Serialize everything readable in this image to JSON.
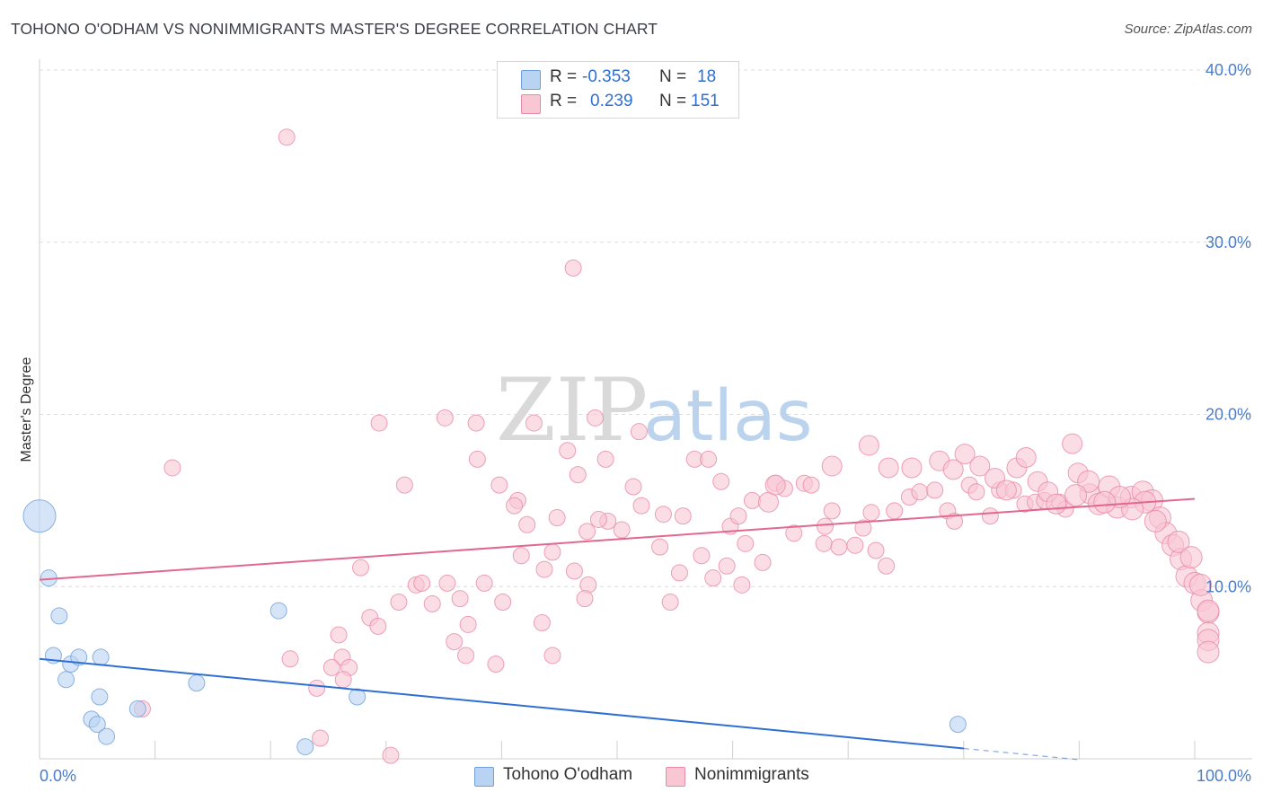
{
  "title": "TOHONO O'ODHAM VS NONIMMIGRANTS MASTER'S DEGREE CORRELATION CHART",
  "source": "Source: ZipAtlas.com",
  "watermark": {
    "zip": "ZIP",
    "atlas": "atlas"
  },
  "legend": {
    "rows": [
      {
        "r_label": "R =",
        "r_value": "-0.353",
        "n_label": "N =",
        "n_value": "18",
        "color": "#b9d3f2",
        "border": "#6fa0db"
      },
      {
        "r_label": "R =",
        "r_value": "0.239",
        "n_label": "N =",
        "n_value": "151",
        "color": "#f9c6d4",
        "border": "#e88aa6"
      }
    ]
  },
  "bottom_legend": [
    {
      "label": "Tohono O'odham",
      "color": "#b9d3f2",
      "border": "#6fa0db"
    },
    {
      "label": "Nonimmigrants",
      "color": "#f9c6d4",
      "border": "#e88aa6"
    }
  ],
  "chart_data": {
    "type": "scatter",
    "title": "TOHONO O'ODHAM VS NONIMMIGRANTS MASTER'S DEGREE CORRELATION CHART",
    "xlabel": "",
    "ylabel": "Master's Degree",
    "xlim": [
      0,
      100
    ],
    "ylim": [
      0,
      40
    ],
    "x_tick_labels": [
      "0.0%",
      "100.0%"
    ],
    "y_ticks": [
      10,
      20,
      30,
      40
    ],
    "y_tick_labels": [
      "10.0%",
      "20.0%",
      "30.0%",
      "40.0%"
    ],
    "series": [
      {
        "name": "Tohono O'odham",
        "color": "#6fa0db",
        "fill": "#b9d3f2",
        "trend": {
          "x0": 0,
          "y0": 5.8,
          "x1": 80,
          "y1": 0.6,
          "dash_to_x": 90
        },
        "points": [
          [
            0,
            14.1,
            18
          ],
          [
            0.8,
            10.5,
            9
          ],
          [
            1.7,
            8.3,
            9
          ],
          [
            1.2,
            6.0,
            9
          ],
          [
            2.7,
            5.5,
            9
          ],
          [
            3.4,
            5.9,
            9
          ],
          [
            2.3,
            4.6,
            9
          ],
          [
            5.3,
            5.9,
            9
          ],
          [
            5.2,
            3.6,
            9
          ],
          [
            4.5,
            2.3,
            9
          ],
          [
            5.0,
            2.0,
            9
          ],
          [
            5.8,
            1.3,
            9
          ],
          [
            8.5,
            2.9,
            9
          ],
          [
            13.6,
            4.4,
            9
          ],
          [
            20.7,
            8.6,
            9
          ],
          [
            27.5,
            3.6,
            9
          ],
          [
            23.0,
            0.7,
            9
          ],
          [
            79.5,
            2.0,
            9
          ]
        ]
      },
      {
        "name": "Nonimmigrants",
        "color": "#e88aa6",
        "fill": "#f9c6d4",
        "trend": {
          "x0": 0,
          "y0": 10.4,
          "x1": 100,
          "y1": 15.1
        },
        "points": [
          [
            21.4,
            36.1,
            9
          ],
          [
            46.2,
            28.5,
            9
          ],
          [
            11.5,
            16.9,
            9
          ],
          [
            8.9,
            2.9,
            9
          ],
          [
            29.4,
            19.5,
            9
          ],
          [
            35.1,
            19.8,
            9
          ],
          [
            37.8,
            19.5,
            9
          ],
          [
            42.8,
            19.5,
            9
          ],
          [
            48.1,
            19.8,
            9
          ],
          [
            51.9,
            19.0,
            9
          ],
          [
            31.6,
            15.9,
            9
          ],
          [
            37.9,
            17.4,
            9
          ],
          [
            39.8,
            15.9,
            9
          ],
          [
            45.7,
            17.9,
            9
          ],
          [
            46.6,
            16.5,
            9
          ],
          [
            49.0,
            17.4,
            9
          ],
          [
            41.4,
            15.0,
            9
          ],
          [
            41.1,
            14.7,
            9
          ],
          [
            42.2,
            13.6,
            9
          ],
          [
            44.8,
            14.0,
            9
          ],
          [
            47.4,
            13.2,
            9
          ],
          [
            49.2,
            13.8,
            9
          ],
          [
            50.4,
            13.3,
            9
          ],
          [
            51.4,
            15.8,
            9
          ],
          [
            52.1,
            14.7,
            9
          ],
          [
            54.0,
            14.2,
            9
          ],
          [
            55.7,
            14.1,
            9
          ],
          [
            56.7,
            17.4,
            9
          ],
          [
            57.9,
            17.4,
            9
          ],
          [
            59.0,
            16.1,
            9
          ],
          [
            59.8,
            13.5,
            9
          ],
          [
            60.5,
            14.1,
            9
          ],
          [
            61.7,
            15.0,
            9
          ],
          [
            63.7,
            16.0,
            9
          ],
          [
            64.5,
            15.7,
            9
          ],
          [
            66.2,
            16.0,
            9
          ],
          [
            66.8,
            15.9,
            9
          ],
          [
            68.0,
            13.5,
            9
          ],
          [
            68.6,
            14.4,
            9
          ],
          [
            70.6,
            12.4,
            9
          ],
          [
            72.0,
            14.3,
            9
          ],
          [
            74.0,
            14.4,
            9
          ],
          [
            75.3,
            15.2,
            9
          ],
          [
            76.2,
            15.5,
            9
          ],
          [
            77.5,
            15.6,
            9
          ],
          [
            78.6,
            14.4,
            9
          ],
          [
            79.2,
            13.8,
            9
          ],
          [
            80.5,
            15.9,
            9
          ],
          [
            81.1,
            15.5,
            9
          ],
          [
            82.3,
            14.1,
            9
          ],
          [
            83.1,
            15.6,
            9
          ],
          [
            84.3,
            15.6,
            9
          ],
          [
            85.3,
            14.8,
            9
          ],
          [
            86.2,
            14.9,
            9
          ],
          [
            87.0,
            15.0,
            9
          ],
          [
            88.3,
            14.9,
            9
          ],
          [
            88.8,
            14.5,
            9
          ],
          [
            47.5,
            10.1,
            9
          ],
          [
            48.4,
            13.9,
            9
          ],
          [
            47.2,
            9.3,
            9
          ],
          [
            53.7,
            12.3,
            9
          ],
          [
            55.4,
            10.8,
            9
          ],
          [
            54.6,
            9.1,
            9
          ],
          [
            57.3,
            11.8,
            9
          ],
          [
            58.3,
            10.5,
            9
          ],
          [
            59.5,
            11.2,
            9
          ],
          [
            61.1,
            12.5,
            9
          ],
          [
            62.6,
            11.4,
            9
          ],
          [
            60.8,
            10.1,
            9
          ],
          [
            65.3,
            13.1,
            9
          ],
          [
            67.9,
            12.5,
            9
          ],
          [
            69.2,
            12.3,
            9
          ],
          [
            72.4,
            12.1,
            9
          ],
          [
            71.3,
            13.4,
            9
          ],
          [
            73.3,
            11.2,
            9
          ],
          [
            43.7,
            11.0,
            9
          ],
          [
            44.4,
            12.0,
            9
          ],
          [
            46.3,
            10.9,
            9
          ],
          [
            41.7,
            11.8,
            9
          ],
          [
            40.1,
            9.1,
            9
          ],
          [
            38.5,
            10.2,
            9
          ],
          [
            36.4,
            9.3,
            9
          ],
          [
            34.0,
            9.0,
            9
          ],
          [
            35.3,
            10.2,
            9
          ],
          [
            31.1,
            9.1,
            9
          ],
          [
            27.8,
            11.1,
            9
          ],
          [
            28.6,
            8.2,
            9
          ],
          [
            29.3,
            7.7,
            9
          ],
          [
            32.6,
            10.1,
            9
          ],
          [
            33.1,
            10.2,
            9
          ],
          [
            37.1,
            7.8,
            9
          ],
          [
            35.9,
            6.8,
            9
          ],
          [
            36.9,
            6.0,
            9
          ],
          [
            39.5,
            5.5,
            9
          ],
          [
            43.5,
            7.9,
            9
          ],
          [
            44.4,
            6.0,
            9
          ],
          [
            25.9,
            7.2,
            9
          ],
          [
            26.2,
            5.9,
            9
          ],
          [
            25.3,
            5.3,
            9
          ],
          [
            26.8,
            5.3,
            9
          ],
          [
            24.0,
            4.1,
            9
          ],
          [
            26.3,
            4.6,
            9
          ],
          [
            21.7,
            5.8,
            9
          ],
          [
            24.3,
            1.2,
            9
          ],
          [
            30.4,
            0.2,
            9
          ],
          [
            63.1,
            14.9,
            11
          ],
          [
            63.7,
            15.9,
            11
          ],
          [
            68.6,
            17.0,
            11
          ],
          [
            71.8,
            18.2,
            11
          ],
          [
            73.5,
            16.9,
            11
          ],
          [
            75.5,
            16.9,
            11
          ],
          [
            77.9,
            17.3,
            11
          ],
          [
            79.1,
            16.8,
            11
          ],
          [
            80.1,
            17.7,
            11
          ],
          [
            81.4,
            17.0,
            11
          ],
          [
            82.7,
            16.3,
            11
          ],
          [
            83.7,
            15.6,
            11
          ],
          [
            84.6,
            16.9,
            11
          ],
          [
            85.4,
            17.5,
            11
          ],
          [
            86.4,
            16.1,
            11
          ],
          [
            87.3,
            15.5,
            11
          ],
          [
            88.0,
            14.8,
            11
          ],
          [
            89.4,
            18.3,
            11
          ],
          [
            89.9,
            16.6,
            11
          ],
          [
            90.9,
            15.4,
            11
          ],
          [
            91.7,
            14.8,
            12
          ],
          [
            92.6,
            15.8,
            12
          ],
          [
            93.3,
            14.6,
            12
          ],
          [
            94.5,
            15.2,
            12
          ],
          [
            95.5,
            15.5,
            12
          ],
          [
            96.3,
            15.0,
            12
          ],
          [
            97.0,
            14.0,
            12
          ],
          [
            97.5,
            13.1,
            12
          ],
          [
            98.1,
            12.4,
            12
          ],
          [
            98.8,
            11.6,
            12
          ],
          [
            99.3,
            10.6,
            12
          ],
          [
            100.0,
            10.2,
            12
          ],
          [
            100.6,
            9.2,
            12
          ],
          [
            101.2,
            8.5,
            12
          ],
          [
            102.0,
            7.3,
            12
          ],
          [
            102.8,
            6.9,
            12
          ],
          [
            103.5,
            6.2,
            12
          ],
          [
            95.7,
            14.9,
            12
          ],
          [
            96.6,
            13.8,
            12
          ],
          [
            98.6,
            12.6,
            12
          ],
          [
            99.7,
            11.7,
            12
          ],
          [
            100.5,
            10.1,
            12
          ],
          [
            101.6,
            8.6,
            12
          ],
          [
            94.6,
            14.5,
            12
          ],
          [
            93.5,
            15.2,
            12
          ],
          [
            92.2,
            14.9,
            12
          ],
          [
            90.8,
            16.1,
            12
          ],
          [
            89.7,
            15.3,
            12
          ]
        ]
      }
    ]
  }
}
